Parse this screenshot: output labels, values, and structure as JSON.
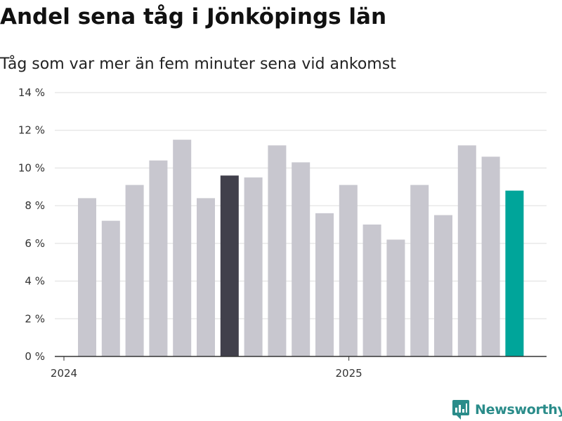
{
  "title": "Andel sena tåg i Jönköpings län",
  "subtitle": "Tåg som var mer än fem minuter sena vid ankomst",
  "brand": "Newsworthy",
  "colors": {
    "bar_default": "#c8c7cf",
    "bar_highlight": "#41404b",
    "bar_latest": "#00a59a",
    "grid": "#dddddd",
    "axis": "#333333",
    "brand": "#2a8c8a"
  },
  "chart_data": {
    "type": "bar",
    "ylim": [
      0,
      14
    ],
    "yticks": [
      0,
      2,
      4,
      6,
      8,
      10,
      12,
      14
    ],
    "ytick_labels": [
      "0 %",
      "2 %",
      "4 %",
      "6 %",
      "8 %",
      "10 %",
      "12 %",
      "14 %"
    ],
    "x_labels": [
      {
        "label": "2024",
        "at_bar": 0
      },
      {
        "label": "2025",
        "at_bar": 12
      }
    ],
    "grid": true,
    "values": [
      8.4,
      7.2,
      9.1,
      10.4,
      11.5,
      8.4,
      9.6,
      9.5,
      11.2,
      10.3,
      7.6,
      9.1,
      7.0,
      6.2,
      9.1,
      7.5,
      11.2,
      10.6,
      8.8
    ],
    "highlight_index": 6,
    "latest_index": 18
  }
}
